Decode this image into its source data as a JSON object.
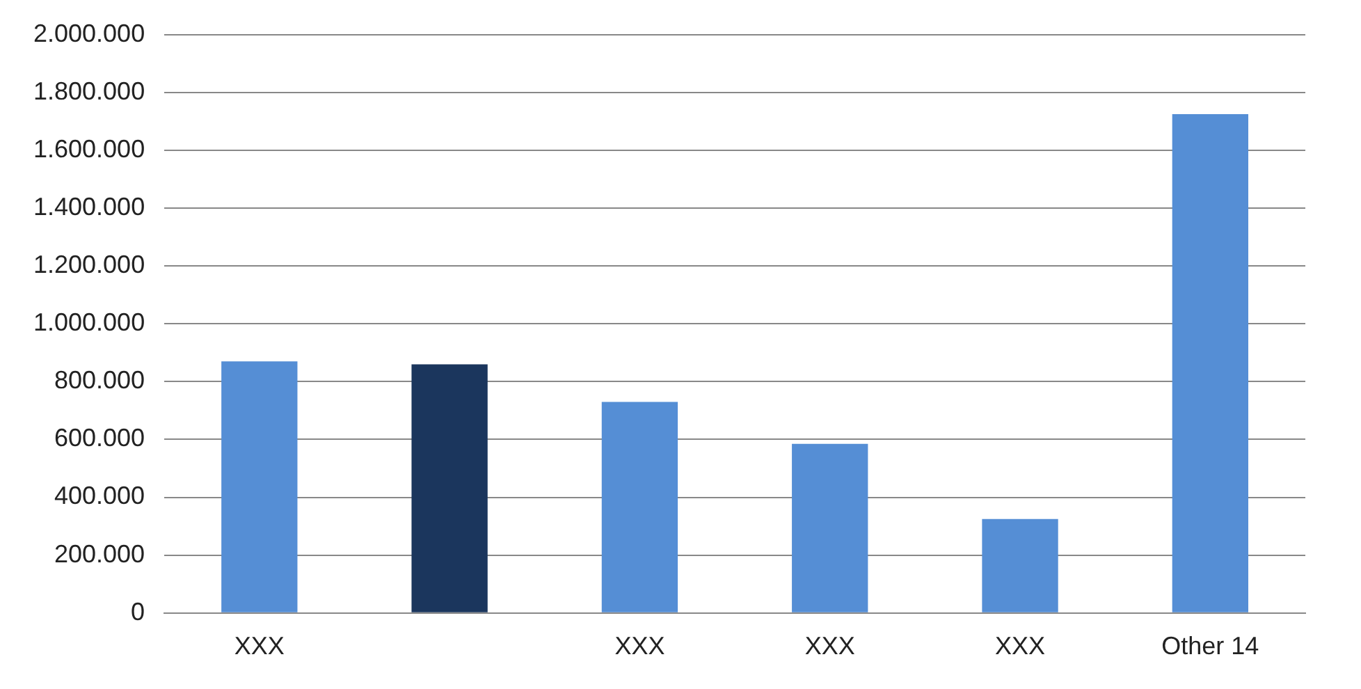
{
  "chart_data": {
    "type": "bar",
    "categories": [
      "XXX",
      null,
      "XXX",
      "XXX",
      "XXX",
      "Other 14"
    ],
    "values": [
      870000,
      860000,
      730000,
      585000,
      325000,
      1725000
    ],
    "colors": [
      "#558ed5",
      "#1b365d",
      "#558ed5",
      "#558ed5",
      "#558ed5",
      "#558ed5"
    ],
    "ylim": [
      0,
      2000000
    ],
    "yticks": [
      0,
      {
        "value": 200000,
        "label": "200.000"
      },
      {
        "value": 400000,
        "label": "400.000"
      },
      {
        "value": 600000,
        "label": "600.000"
      },
      {
        "value": 800000,
        "label": "800.000"
      },
      {
        "value": 1000000,
        "label": "1.000.000"
      },
      {
        "value": 1200000,
        "label": "1.200.000"
      },
      {
        "value": 1400000,
        "label": "1.400.000"
      },
      {
        "value": 1600000,
        "label": "1.600.000"
      },
      {
        "value": 1800000,
        "label": "1.800.000"
      },
      {
        "value": 2000000,
        "label": "2.000.000"
      }
    ],
    "grid": "y"
  }
}
